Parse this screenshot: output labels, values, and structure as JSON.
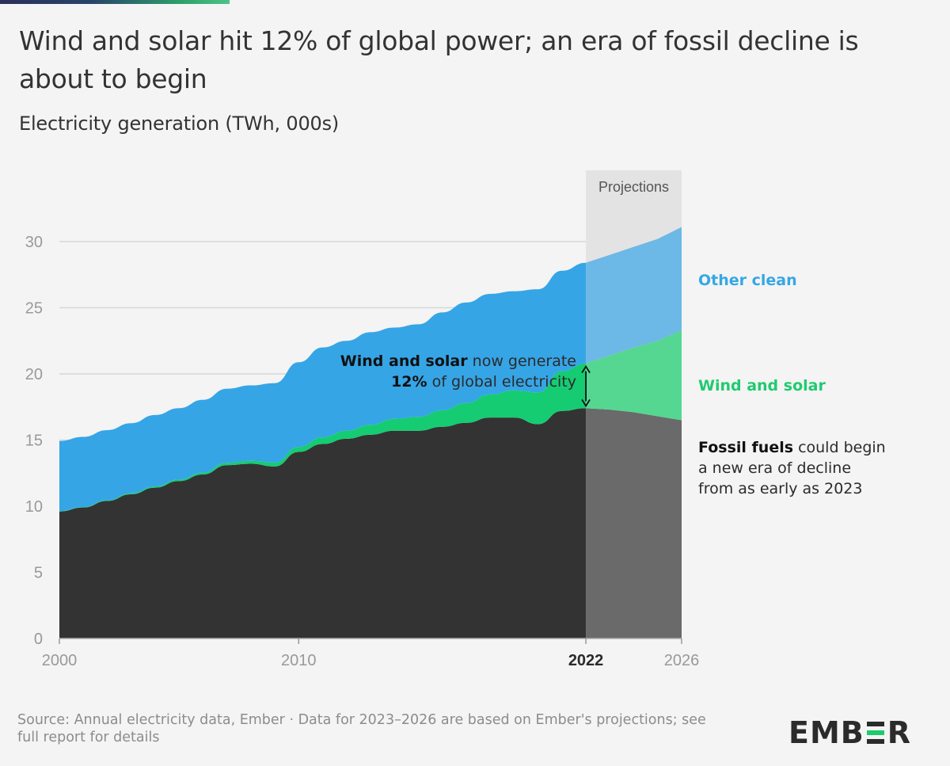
{
  "title": "Wind and solar hit 12% of global power; an era of fossil decline is about to begin",
  "subtitle": "Electricity generation (TWh, 000s)",
  "source": "Source: Annual electricity data, Ember · Data for 2023–2026 are based on Ember's projections; see full report for details",
  "logo_text": "EMBER",
  "projection_label": "Projections",
  "annotation": {
    "line1_bold": "Wind and solar",
    "line1_rest": " now generate",
    "line2_bold": "12%",
    "line2_rest": " of global electricity"
  },
  "series_labels": {
    "other_clean": "Other clean",
    "wind_solar": "Wind and solar",
    "fossil_bold": "Fossil fuels",
    "fossil_line1_rest": " could begin",
    "fossil_line2": "a new era of decline",
    "fossil_line3": "from as early as 2023"
  },
  "colors": {
    "fossil": "#333333",
    "wind_solar": "#15cc72",
    "other_clean": "#36a5e6",
    "fossil_proj": "#6a6a6a",
    "wind_solar_proj": "#55d792",
    "other_clean_proj": "#6cb8e6",
    "projection_band": "#e3e3e3",
    "grid": "#d7d7d7"
  },
  "chart_data": {
    "type": "area",
    "stacked": true,
    "x": [
      2000,
      2001,
      2002,
      2003,
      2004,
      2005,
      2006,
      2007,
      2008,
      2009,
      2010,
      2011,
      2012,
      2013,
      2014,
      2015,
      2016,
      2017,
      2018,
      2019,
      2020,
      2021,
      2022,
      2023,
      2024,
      2025,
      2026
    ],
    "series": [
      {
        "name": "Fossil fuels",
        "values": [
          9.6,
          9.9,
          10.4,
          10.9,
          11.4,
          11.9,
          12.4,
          13.1,
          13.2,
          13.0,
          14.1,
          14.7,
          15.1,
          15.4,
          15.7,
          15.7,
          16.0,
          16.3,
          16.7,
          16.7,
          16.2,
          17.2,
          17.4,
          17.3,
          17.1,
          16.8,
          16.5
        ]
      },
      {
        "name": "Wind and solar",
        "values": [
          0.03,
          0.04,
          0.05,
          0.07,
          0.09,
          0.11,
          0.14,
          0.18,
          0.23,
          0.3,
          0.38,
          0.5,
          0.6,
          0.75,
          0.9,
          1.05,
          1.25,
          1.5,
          1.75,
          2.05,
          2.4,
          3.0,
          3.4,
          4.1,
          4.9,
          5.7,
          6.8
        ]
      },
      {
        "name": "Other clean",
        "values": [
          5.3,
          5.3,
          5.3,
          5.3,
          5.4,
          5.4,
          5.5,
          5.6,
          5.7,
          6.0,
          6.4,
          6.8,
          6.8,
          7.0,
          6.9,
          7.0,
          7.4,
          7.6,
          7.6,
          7.5,
          7.8,
          7.6,
          7.6,
          7.6,
          7.6,
          7.7,
          7.8
        ]
      }
    ],
    "projection_start": 2022,
    "projection_label": "Projections",
    "xlim": [
      2000,
      2026
    ],
    "ylim": [
      0,
      32
    ],
    "yticks": [
      0,
      5,
      10,
      15,
      20,
      25,
      30
    ],
    "xticks": [
      2000,
      2010,
      2022,
      2026
    ],
    "highlight_xtick": 2022,
    "ylabel": "Electricity generation (TWh, 000s)",
    "grid": true
  }
}
